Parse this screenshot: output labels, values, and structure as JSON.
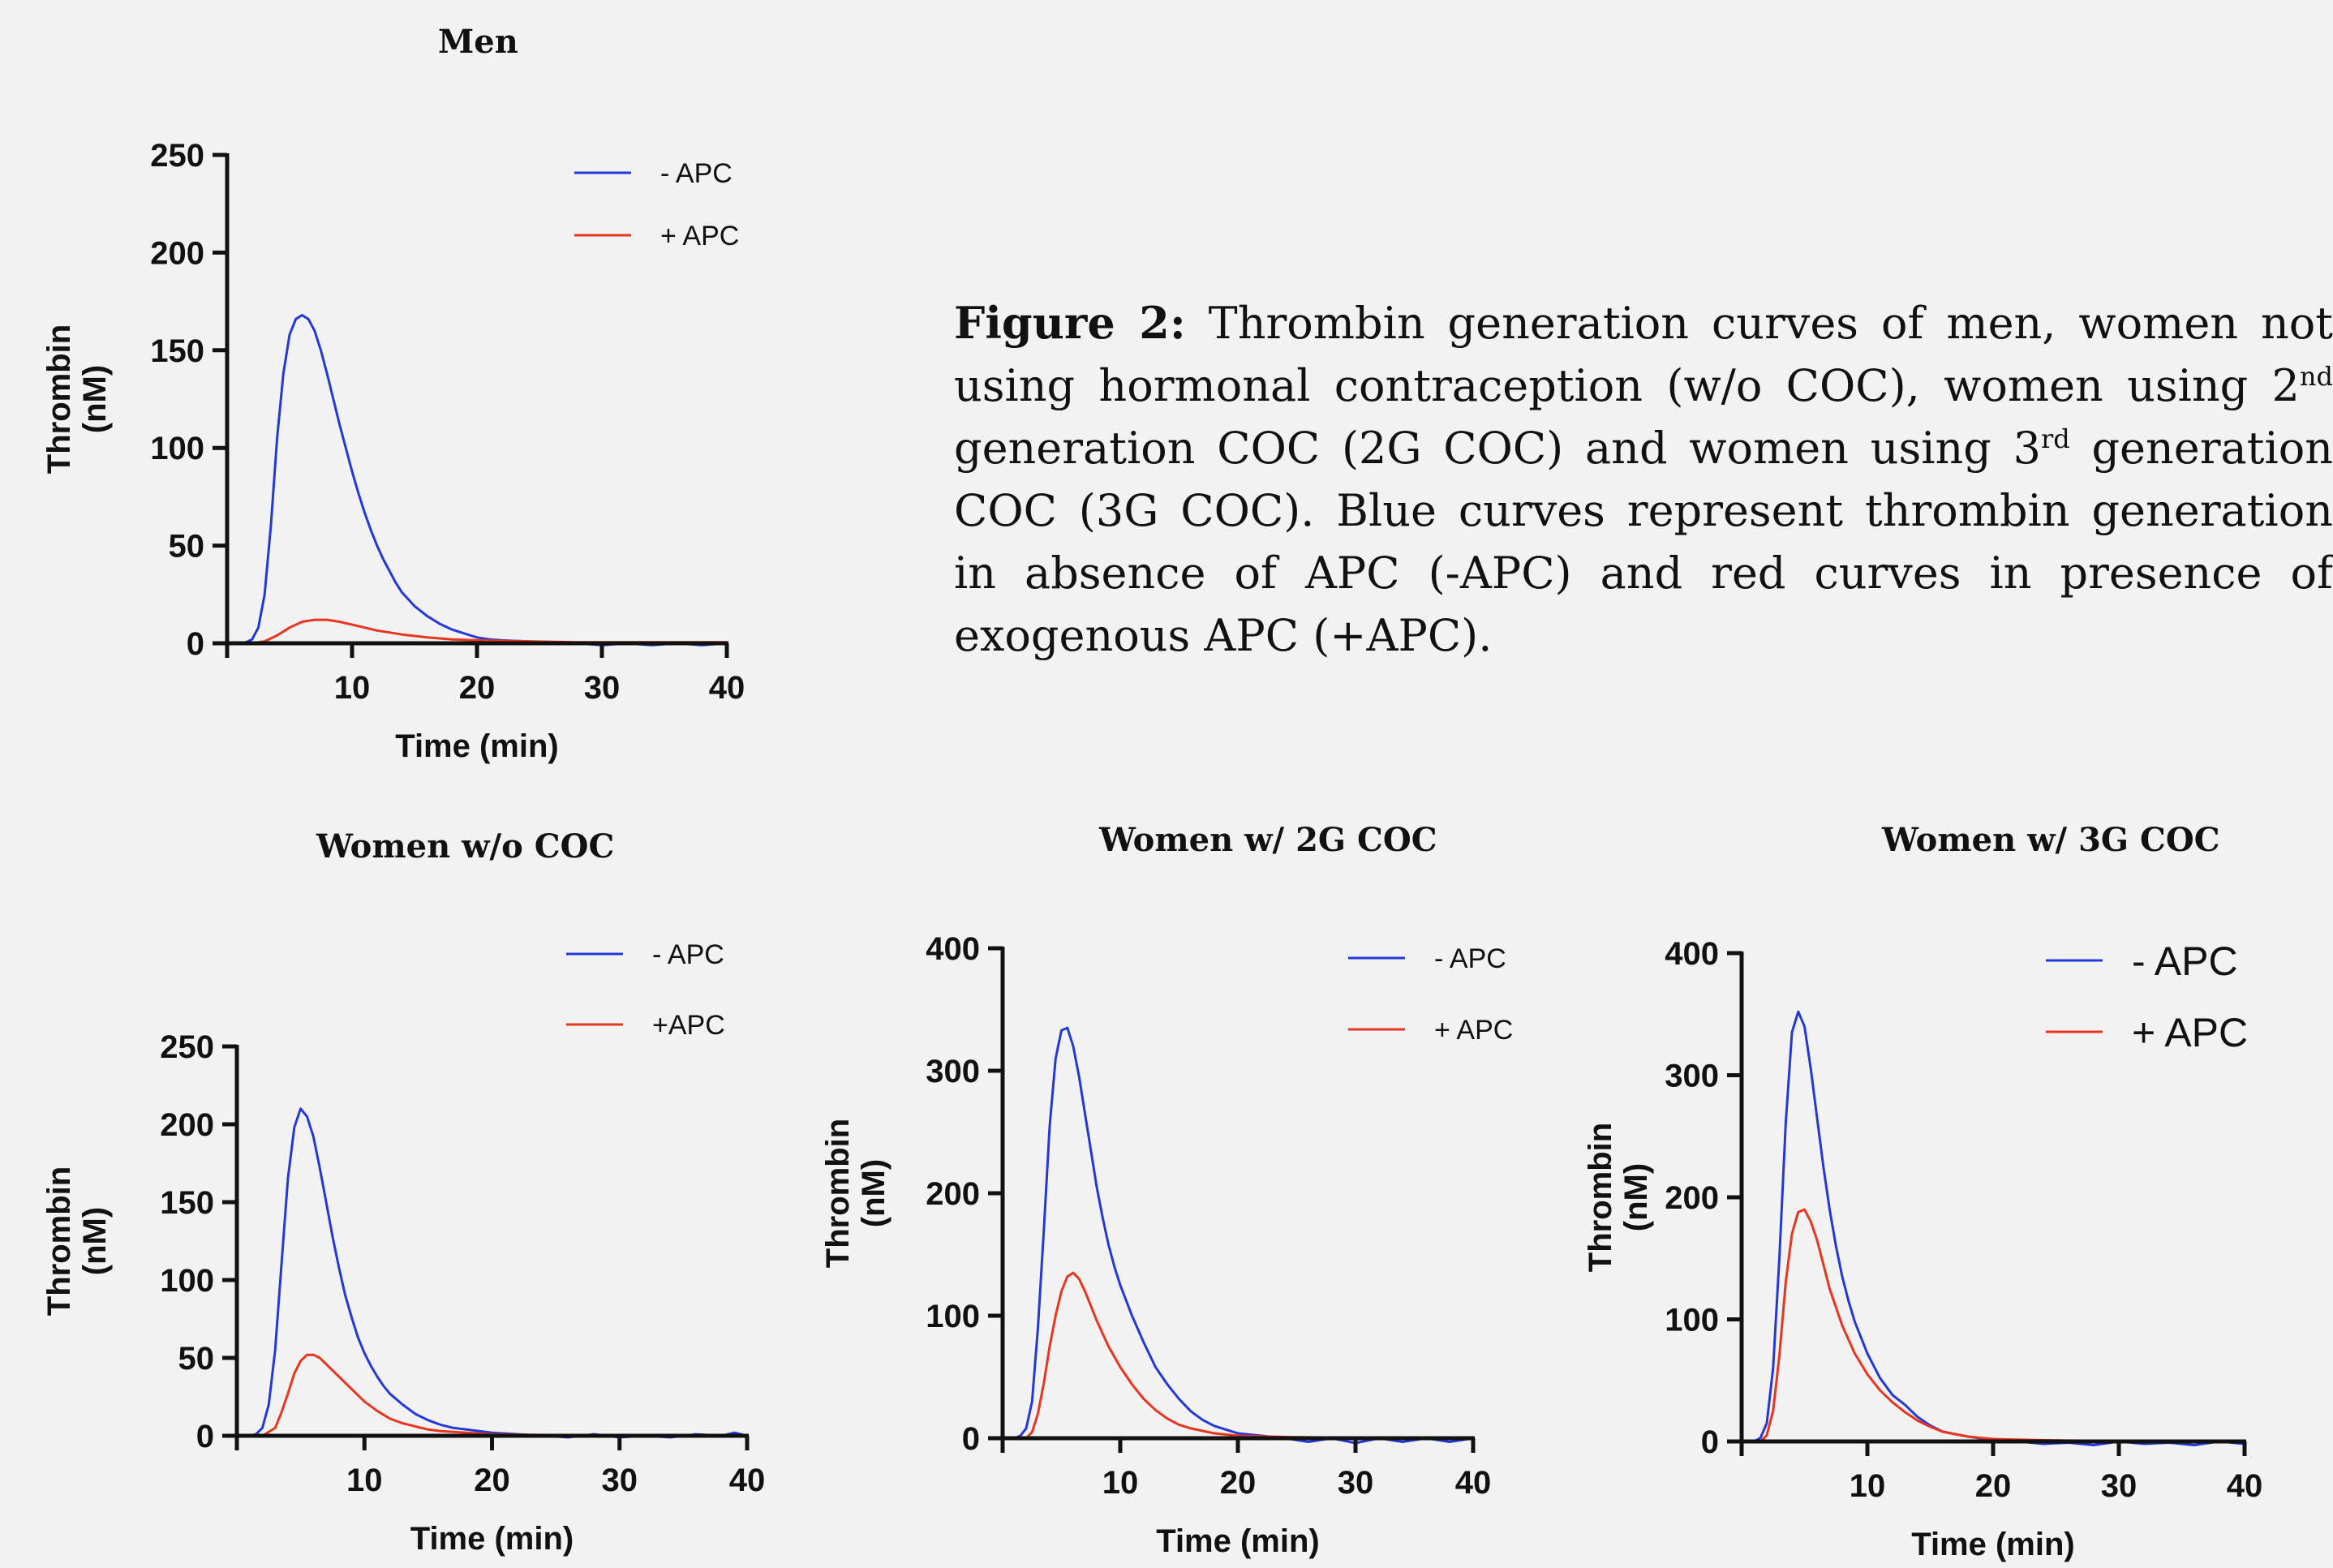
{
  "figure_caption": {
    "lead": "Figure 2:",
    "p1": " Thrombin generation curves of men,  women not using hormonal contraception (w/o COC), women using 2",
    "sup1": "nd",
    "p2": " generation COC (2G COC) and women using 3",
    "sup2": "rd",
    "p3": " generation COC (3G COC). Blue curves represent thrombin generation in absence of APC (-APC) and red curves in presence of exogenous APC (+APC)."
  },
  "colors": {
    "minus_apc": "#2338d6",
    "plus_apc": "#e8351f",
    "axis": "#111111"
  },
  "chart_data": [
    {
      "type": "line",
      "title": "Men",
      "xlabel": "Time (min)",
      "ylabel": "Thrombin\n(nM)",
      "xlim": [
        0,
        40
      ],
      "ylim": [
        0,
        250
      ],
      "xticks": [
        10,
        20,
        30,
        40
      ],
      "yticks": [
        0,
        50,
        100,
        150,
        200,
        250
      ],
      "legend": "top-right",
      "series": [
        {
          "name": "- APC",
          "color": "#2338d6",
          "x": [
            0,
            1,
            1.5,
            2,
            2.5,
            3,
            3.5,
            4,
            4.5,
            5,
            5.5,
            6,
            6.5,
            7,
            7.5,
            8,
            8.5,
            9,
            9.5,
            10,
            10.5,
            11,
            11.5,
            12,
            12.5,
            13,
            13.5,
            14,
            15,
            16,
            17,
            18,
            19,
            20,
            21,
            22,
            24,
            26,
            28,
            30,
            32,
            34,
            36,
            38,
            40
          ],
          "y": [
            0,
            0,
            0.5,
            2,
            8,
            25,
            60,
            105,
            138,
            158,
            166,
            168,
            166,
            160,
            150,
            138,
            125,
            112,
            100,
            88,
            77,
            67,
            58,
            50,
            43,
            37,
            31,
            26,
            19,
            14,
            10,
            7,
            5,
            3,
            2,
            1.5,
            1,
            0.5,
            0,
            -1,
            0,
            -1,
            0,
            -1,
            0
          ]
        },
        {
          "name": "+ APC",
          "color": "#e8351f",
          "x": [
            0,
            2,
            3,
            4,
            5,
            6,
            7,
            8,
            9,
            10,
            11,
            12,
            14,
            16,
            18,
            20,
            24,
            28,
            32,
            36,
            40
          ],
          "y": [
            0,
            0,
            1,
            4,
            8,
            11,
            12,
            12,
            11,
            9.5,
            8,
            6.5,
            4.5,
            3,
            2,
            1.5,
            1,
            0.5,
            0.5,
            0.5,
            0.5
          ]
        }
      ]
    },
    {
      "type": "line",
      "title": "Women w/o COC",
      "xlabel": "Time (min)",
      "ylabel": "Thrombin\n(nM)",
      "xlim": [
        0,
        40
      ],
      "ylim": [
        0,
        250
      ],
      "xticks": [
        10,
        20,
        30,
        40
      ],
      "yticks": [
        0,
        50,
        100,
        150,
        200,
        250
      ],
      "legend": "top-right",
      "series": [
        {
          "name": "- APC",
          "color": "#2338d6",
          "x": [
            0,
            1,
            1.5,
            2,
            2.5,
            3,
            3.5,
            4,
            4.5,
            5,
            5.5,
            6,
            6.5,
            7,
            7.5,
            8,
            8.5,
            9,
            9.5,
            10,
            10.5,
            11,
            11.5,
            12,
            13,
            14,
            15,
            16,
            17,
            18,
            19,
            20,
            22,
            24,
            26,
            28,
            30,
            32,
            34,
            36,
            38,
            39,
            40
          ],
          "y": [
            0,
            0,
            1,
            5,
            20,
            55,
            110,
            165,
            198,
            210,
            205,
            192,
            172,
            150,
            128,
            108,
            90,
            76,
            63,
            53,
            45,
            38,
            32,
            27,
            20,
            14,
            10,
            7,
            5,
            4,
            3,
            2,
            1,
            0,
            -1,
            1,
            -1,
            0,
            -1,
            1,
            0,
            2,
            0
          ]
        },
        {
          "name": "+APC",
          "color": "#e8351f",
          "x": [
            0,
            2,
            3,
            3.5,
            4,
            4.5,
            5,
            5.5,
            6,
            6.5,
            7,
            8,
            9,
            10,
            11,
            12,
            13,
            14,
            15,
            16,
            18,
            20,
            24,
            28,
            32,
            36,
            40
          ],
          "y": [
            0,
            0,
            5,
            15,
            27,
            40,
            48,
            52,
            52,
            50,
            46,
            38,
            30,
            22,
            16,
            11,
            8,
            6,
            4,
            3,
            2,
            1,
            0.5,
            0.5,
            0.5,
            0.5,
            0.5
          ]
        }
      ]
    },
    {
      "type": "line",
      "title": "Women w/ 2G COC",
      "xlabel": "Time (min)",
      "ylabel": "Thrombin\n(nM)",
      "xlim": [
        0,
        40
      ],
      "ylim": [
        0,
        400
      ],
      "xticks": [
        10,
        20,
        30,
        40
      ],
      "yticks": [
        0,
        100,
        200,
        300,
        400
      ],
      "legend": "top-right",
      "series": [
        {
          "name": "- APC",
          "color": "#2338d6",
          "x": [
            0,
            1,
            1.5,
            2,
            2.5,
            3,
            3.5,
            4,
            4.5,
            5,
            5.5,
            6,
            6.5,
            7,
            7.5,
            8,
            8.5,
            9,
            9.5,
            10,
            11,
            12,
            13,
            14,
            15,
            16,
            17,
            18,
            19,
            20,
            22,
            24,
            26,
            28,
            30,
            32,
            34,
            36,
            38,
            40
          ],
          "y": [
            0,
            0,
            2,
            8,
            30,
            90,
            170,
            255,
            310,
            333,
            335,
            320,
            295,
            265,
            235,
            205,
            180,
            158,
            140,
            125,
            100,
            78,
            58,
            44,
            32,
            22,
            15,
            10,
            7,
            4,
            2,
            0,
            -3,
            0,
            -4,
            0,
            -3,
            0,
            -3,
            0
          ]
        },
        {
          "name": "+ APC",
          "color": "#e8351f",
          "x": [
            0,
            2,
            2.5,
            3,
            3.5,
            4,
            4.5,
            5,
            5.5,
            6,
            6.5,
            7,
            7.5,
            8,
            9,
            10,
            11,
            12,
            13,
            14,
            15,
            16,
            18,
            20,
            24,
            28,
            32,
            36,
            40
          ],
          "y": [
            0,
            0,
            5,
            20,
            45,
            75,
            100,
            120,
            132,
            135,
            130,
            120,
            108,
            96,
            75,
            58,
            44,
            32,
            23,
            16,
            11,
            8,
            4,
            2,
            1,
            0.5,
            0.5,
            0.5,
            0.5
          ]
        }
      ]
    },
    {
      "type": "line",
      "title": "Women w/ 3G COC",
      "xlabel": "Time (min)",
      "ylabel": "Thrombin\n(nM)",
      "xlim": [
        0,
        40
      ],
      "ylim": [
        0,
        400
      ],
      "xticks": [
        10,
        20,
        30,
        40
      ],
      "yticks": [
        0,
        100,
        200,
        300,
        400
      ],
      "legend": "top-right",
      "series": [
        {
          "name": "- APC",
          "color": "#2338d6",
          "x": [
            0,
            1,
            1.5,
            2,
            2.5,
            3,
            3.5,
            4,
            4.5,
            5,
            5.5,
            6,
            6.5,
            7,
            7.5,
            8,
            8.5,
            9,
            10,
            11,
            12,
            13,
            14,
            15,
            16,
            18,
            20,
            22,
            24,
            26,
            28,
            30,
            32,
            34,
            36,
            38,
            40
          ],
          "y": [
            0,
            0,
            3,
            15,
            60,
            150,
            260,
            335,
            352,
            340,
            305,
            265,
            225,
            190,
            160,
            135,
            115,
            98,
            72,
            52,
            38,
            30,
            20,
            13,
            8,
            4,
            1,
            0,
            -2,
            -1,
            -3,
            0,
            -2,
            -1,
            -3,
            0,
            -2
          ]
        },
        {
          "name": "+ APC",
          "color": "#e8351f",
          "x": [
            0,
            1.5,
            2,
            2.5,
            3,
            3.5,
            4,
            4.5,
            5,
            5.5,
            6,
            6.5,
            7,
            8,
            9,
            10,
            11,
            12,
            13,
            14,
            15,
            16,
            18,
            20,
            24,
            28,
            32,
            36,
            40
          ],
          "y": [
            0,
            0,
            5,
            25,
            70,
            130,
            170,
            188,
            190,
            180,
            165,
            145,
            125,
            95,
            72,
            55,
            42,
            32,
            24,
            17,
            12,
            8,
            4,
            2,
            1,
            0.5,
            0.5,
            0.5,
            0.5
          ]
        }
      ]
    }
  ]
}
